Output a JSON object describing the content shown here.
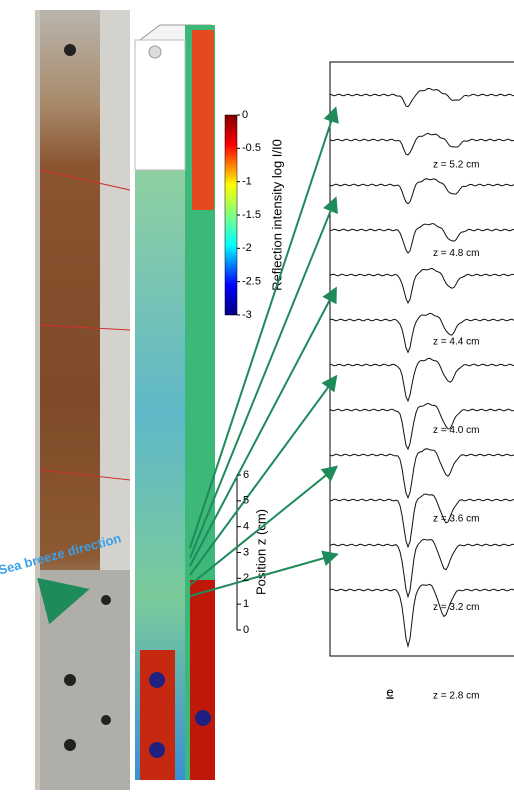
{
  "colorbar": {
    "label": "Reflection intensity log I/I0",
    "lim": [
      -3,
      0
    ],
    "ticks": [
      0,
      -0.5,
      -1,
      -1.5,
      -2,
      -2.5,
      -3
    ]
  },
  "position_axis": {
    "label": "Position z (cm)",
    "lim": [
      0,
      6
    ],
    "ticks": [
      0,
      1,
      2,
      3,
      4,
      5,
      6
    ]
  },
  "spectra_labels": [
    "z = 5.2 cm",
    "z = 4.8 cm",
    "z = 4.4 cm",
    "z = 4.0 cm",
    "z = 3.6 cm",
    "z = 3.2 cm",
    "z = 2.8 cm"
  ],
  "panel_mark": "e",
  "photo_annotation": "Sea breeze direction"
}
